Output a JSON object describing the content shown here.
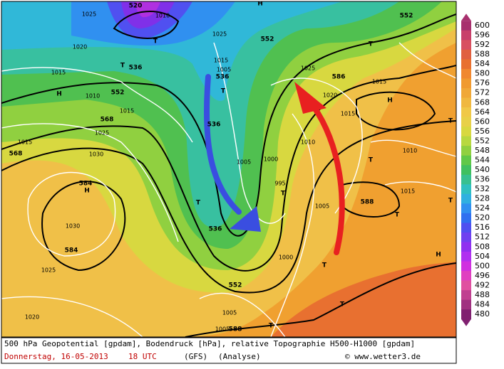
{
  "map": {
    "labels": [
      "520",
      "552",
      "552",
      "536",
      "552",
      "536",
      "568",
      "536",
      "568",
      "584",
      "584",
      "586",
      "588",
      "536",
      "552",
      "588",
      "H",
      "H",
      "H",
      "H",
      "H",
      "T",
      "T",
      "T",
      "T",
      "T",
      "T",
      "T",
      "T",
      "T",
      "T",
      "T",
      "T",
      "T",
      "1025",
      "1010",
      "1020",
      "1015",
      "1010",
      "1015",
      "1025",
      "1030",
      "1015",
      "1030",
      "1025",
      "1020",
      "1025",
      "1015",
      "1005",
      "1025",
      "1020",
      "1015",
      "1010",
      "1005",
      "1000",
      "995",
      "1005",
      "1015",
      "1010",
      "1015",
      "1000",
      "1005",
      "1005"
    ]
  },
  "legend": {
    "ticks": [
      600,
      596,
      592,
      588,
      584,
      580,
      576,
      572,
      568,
      564,
      560,
      556,
      552,
      548,
      544,
      540,
      536,
      532,
      528,
      524,
      520,
      516,
      512,
      508,
      504,
      500,
      496,
      492,
      488,
      484,
      480
    ]
  },
  "footer": {
    "line1": "500 hPa Geopotential [gpdam], Bodendruck [hPa], relative Topographie H500-H1000 [gpdam]",
    "date": "Donnerstag, 16-05-2013",
    "time": "18 UTC",
    "model": "(GFS)",
    "analysis": "(Analyse)",
    "credit": "© www.wetter3.de"
  }
}
